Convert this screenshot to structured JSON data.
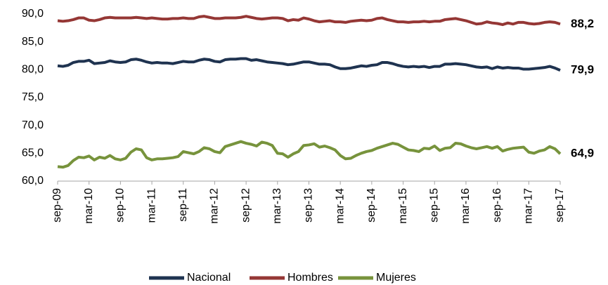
{
  "chart_data": {
    "type": "line",
    "categories": [
      "sep-09",
      null,
      null,
      null,
      null,
      null,
      "mar-10",
      null,
      null,
      null,
      null,
      null,
      "sep-10",
      null,
      null,
      null,
      null,
      null,
      "mar-11",
      null,
      null,
      null,
      null,
      null,
      "sep-11",
      null,
      null,
      null,
      null,
      null,
      "mar-12",
      null,
      null,
      null,
      null,
      null,
      "sep-12",
      null,
      null,
      null,
      null,
      null,
      "mar-13",
      null,
      null,
      null,
      null,
      null,
      "sep-13",
      null,
      null,
      null,
      null,
      null,
      "mar-14",
      null,
      null,
      null,
      null,
      null,
      "sep-14",
      null,
      null,
      null,
      null,
      null,
      "mar-15",
      null,
      null,
      null,
      null,
      null,
      "sep-15",
      null,
      null,
      null,
      null,
      null,
      "mar-16",
      null,
      null,
      null,
      null,
      null,
      "sep-16",
      null,
      null,
      null,
      null,
      null,
      "mar-17",
      null,
      null,
      null,
      null,
      null,
      "sep-17"
    ],
    "series": [
      {
        "name": "Nacional",
        "color": "#1f3350",
        "end_label": "79,9",
        "values": [
          80.7,
          80.6,
          80.8,
          81.3,
          81.5,
          81.5,
          81.7,
          81.1,
          81.2,
          81.3,
          81.6,
          81.4,
          81.3,
          81.4,
          81.8,
          81.9,
          81.7,
          81.4,
          81.2,
          81.3,
          81.2,
          81.2,
          81.1,
          81.3,
          81.5,
          81.4,
          81.4,
          81.7,
          81.9,
          81.8,
          81.5,
          81.4,
          81.8,
          81.9,
          81.9,
          82.0,
          82.0,
          81.7,
          81.8,
          81.6,
          81.4,
          81.3,
          81.2,
          81.1,
          80.9,
          81.0,
          81.2,
          81.4,
          81.4,
          81.2,
          81.0,
          81.0,
          80.9,
          80.5,
          80.2,
          80.2,
          80.3,
          80.5,
          80.7,
          80.6,
          80.8,
          80.9,
          81.3,
          81.3,
          81.1,
          80.8,
          80.6,
          80.5,
          80.6,
          80.5,
          80.6,
          80.4,
          80.6,
          80.6,
          81.0,
          81.0,
          81.1,
          81.0,
          80.9,
          80.7,
          80.5,
          80.4,
          80.5,
          80.2,
          80.5,
          80.3,
          80.4,
          80.3,
          80.3,
          80.1,
          80.1,
          80.2,
          80.3,
          80.4,
          80.6,
          80.3,
          79.9
        ]
      },
      {
        "name": "Hombres",
        "color": "#953735",
        "end_label": "88,2",
        "values": [
          88.8,
          88.7,
          88.8,
          89.0,
          89.3,
          89.3,
          88.9,
          88.8,
          89.0,
          89.3,
          89.4,
          89.3,
          89.3,
          89.3,
          89.3,
          89.4,
          89.3,
          89.2,
          89.3,
          89.2,
          89.1,
          89.1,
          89.2,
          89.2,
          89.3,
          89.2,
          89.2,
          89.5,
          89.6,
          89.4,
          89.2,
          89.2,
          89.3,
          89.3,
          89.3,
          89.4,
          89.6,
          89.4,
          89.2,
          89.1,
          89.2,
          89.3,
          89.3,
          89.2,
          88.8,
          89.0,
          88.9,
          89.3,
          89.1,
          88.8,
          88.6,
          88.7,
          88.8,
          88.6,
          88.6,
          88.5,
          88.7,
          88.8,
          88.9,
          88.8,
          88.9,
          89.2,
          89.3,
          89.0,
          88.8,
          88.6,
          88.6,
          88.5,
          88.6,
          88.6,
          88.7,
          88.6,
          88.7,
          88.7,
          89.0,
          89.1,
          89.2,
          89.0,
          88.8,
          88.5,
          88.2,
          88.3,
          88.6,
          88.4,
          88.3,
          88.1,
          88.4,
          88.2,
          88.5,
          88.5,
          88.3,
          88.2,
          88.3,
          88.5,
          88.6,
          88.5,
          88.2
        ]
      },
      {
        "name": "Mujeres",
        "color": "#77933c",
        "end_label": "64,9",
        "values": [
          62.6,
          62.5,
          62.8,
          63.7,
          64.3,
          64.2,
          64.5,
          63.8,
          64.3,
          64.1,
          64.6,
          64.0,
          63.8,
          64.1,
          65.2,
          65.8,
          65.6,
          64.2,
          63.8,
          64.0,
          64.0,
          64.1,
          64.2,
          64.4,
          65.3,
          65.1,
          64.9,
          65.3,
          66.0,
          65.8,
          65.3,
          65.1,
          66.2,
          66.5,
          66.8,
          67.1,
          66.8,
          66.6,
          66.3,
          67.0,
          66.8,
          66.4,
          65.0,
          64.9,
          64.3,
          64.9,
          65.3,
          66.4,
          66.5,
          66.7,
          66.1,
          66.3,
          66.0,
          65.6,
          64.6,
          64.0,
          64.1,
          64.6,
          65.0,
          65.3,
          65.5,
          65.9,
          66.2,
          66.5,
          66.8,
          66.6,
          66.1,
          65.6,
          65.5,
          65.3,
          65.9,
          65.8,
          66.3,
          65.5,
          65.9,
          66.0,
          66.8,
          66.7,
          66.3,
          66.0,
          65.8,
          66.0,
          66.2,
          65.9,
          66.2,
          65.4,
          65.7,
          65.9,
          66.0,
          66.1,
          65.2,
          65.0,
          65.4,
          65.6,
          66.2,
          65.8,
          64.9
        ]
      }
    ],
    "ylim": [
      60,
      90
    ],
    "yticks": [
      {
        "value": 60,
        "label": "60,0"
      },
      {
        "value": 65,
        "label": "65,0"
      },
      {
        "value": 70,
        "label": "70,0"
      },
      {
        "value": 75,
        "label": "75,0"
      },
      {
        "value": 80,
        "label": "80,0"
      },
      {
        "value": 85,
        "label": "85,0"
      },
      {
        "value": 90,
        "label": "90,0"
      }
    ],
    "grid": false,
    "legend": "bottom"
  }
}
